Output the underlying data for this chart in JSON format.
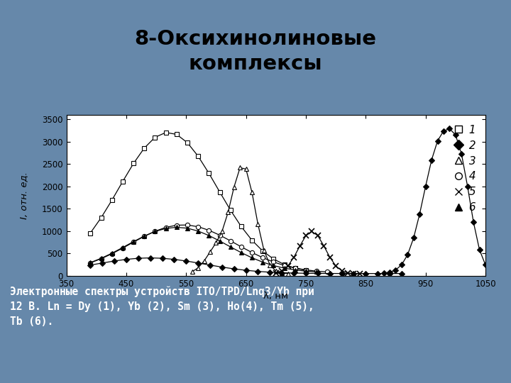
{
  "title": "8‑Оксихинолиновые\nкомплексы",
  "caption_line1": "Электронные спектры устройств ITO/TPD/Lnq3/Yb при",
  "caption_line2": "12 В. Ln = Dy (1), Yb (2), Sm (3), Ho(4), Tm (5),",
  "caption_line3": "Tb (6).",
  "ylabel": "I, отн. ед.",
  "xlabel": "λ, нм",
  "xmin": 350,
  "xmax": 1050,
  "ymin": 0,
  "ymax": 3600,
  "xticks": [
    350,
    450,
    550,
    650,
    750,
    850,
    950,
    1050
  ],
  "yticks": [
    0,
    500,
    1000,
    1500,
    2000,
    2500,
    3000,
    3500
  ],
  "bg_color": "#6688aa",
  "title_bg": "#ffffff",
  "chart_bg": "#e8e8e8",
  "plot_bg": "#ffffff"
}
